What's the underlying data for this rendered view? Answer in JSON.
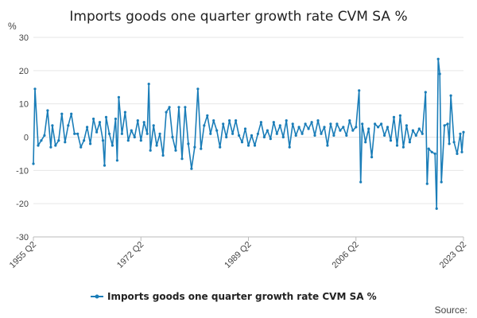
{
  "chart_data": {
    "type": "line",
    "title": "Imports goods one quarter growth rate CVM SA %",
    "ylabel": "%",
    "xlabel": "",
    "source_label": "Source:",
    "ylim": [
      -30,
      30
    ],
    "yticks": [
      -30,
      -20,
      -10,
      0,
      10,
      20,
      30
    ],
    "xlim": [
      "1955 Q2",
      "2023 Q2"
    ],
    "xticks": [
      "1955 Q2",
      "1972 Q2",
      "1989 Q2",
      "2006 Q2",
      "2023 Q2"
    ],
    "grid": true,
    "legend_position": "bottom-center",
    "color": "#1a7db8",
    "series": [
      {
        "name": "Imports goods one quarter growth rate CVM SA %",
        "points": [
          [
            "1955 Q2",
            -8.0
          ],
          [
            "1955 Q3",
            14.5
          ],
          [
            "1956 Q1",
            -2.5
          ],
          [
            "1956 Q3",
            -1.0
          ],
          [
            "1957 Q1",
            0.5
          ],
          [
            "1957 Q3",
            8.0
          ],
          [
            "1958 Q1",
            -3.0
          ],
          [
            "1958 Q2",
            3.5
          ],
          [
            "1958 Q4",
            -2.5
          ],
          [
            "1959 Q2",
            -1.0
          ],
          [
            "1959 Q4",
            7.0
          ],
          [
            "1960 Q2",
            -1.5
          ],
          [
            "1960 Q4",
            3.5
          ],
          [
            "1961 Q2",
            7.0
          ],
          [
            "1961 Q4",
            1.0
          ],
          [
            "1962 Q2",
            1.0
          ],
          [
            "1962 Q4",
            -3.0
          ],
          [
            "1963 Q2",
            -1.0
          ],
          [
            "1963 Q4",
            3.0
          ],
          [
            "1964 Q2",
            -2.0
          ],
          [
            "1964 Q4",
            5.5
          ],
          [
            "1965 Q2",
            1.5
          ],
          [
            "1965 Q4",
            4.5
          ],
          [
            "1966 Q2",
            -1.0
          ],
          [
            "1966 Q3",
            -8.5
          ],
          [
            "1966 Q4",
            6.0
          ],
          [
            "1967 Q2",
            1.0
          ],
          [
            "1967 Q4",
            -2.5
          ],
          [
            "1968 Q2",
            5.5
          ],
          [
            "1968 Q3",
            -7.0
          ],
          [
            "1968 Q4",
            12.0
          ],
          [
            "1969 Q2",
            1.0
          ],
          [
            "1969 Q4",
            7.5
          ],
          [
            "1970 Q2",
            -1.0
          ],
          [
            "1970 Q4",
            2.0
          ],
          [
            "1971 Q2",
            0.0
          ],
          [
            "1971 Q4",
            5.0
          ],
          [
            "1972 Q2",
            -1.0
          ],
          [
            "1972 Q4",
            4.5
          ],
          [
            "1973 Q2",
            1.0
          ],
          [
            "1973 Q3",
            16.0
          ],
          [
            "1973 Q4",
            -4.0
          ],
          [
            "1974 Q2",
            3.5
          ],
          [
            "1974 Q4",
            -2.5
          ],
          [
            "1975 Q2",
            1.0
          ],
          [
            "1975 Q4",
            -5.5
          ],
          [
            "1976 Q2",
            7.5
          ],
          [
            "1976 Q4",
            9.0
          ],
          [
            "1977 Q2",
            0.0
          ],
          [
            "1977 Q4",
            -4.0
          ],
          [
            "1978 Q2",
            9.0
          ],
          [
            "1978 Q4",
            -6.5
          ],
          [
            "1979 Q2",
            9.0
          ],
          [
            "1979 Q4",
            -2.0
          ],
          [
            "1980 Q2",
            -9.5
          ],
          [
            "1980 Q4",
            -3.0
          ],
          [
            "1981 Q2",
            14.5
          ],
          [
            "1981 Q4",
            -3.5
          ],
          [
            "1982 Q2",
            3.5
          ],
          [
            "1982 Q4",
            6.5
          ],
          [
            "1983 Q2",
            1.0
          ],
          [
            "1983 Q4",
            5.0
          ],
          [
            "1984 Q2",
            2.0
          ],
          [
            "1984 Q4",
            -3.0
          ],
          [
            "1985 Q2",
            4.0
          ],
          [
            "1985 Q4",
            0.0
          ],
          [
            "1986 Q2",
            5.0
          ],
          [
            "1986 Q4",
            1.0
          ],
          [
            "1987 Q2",
            5.0
          ],
          [
            "1987 Q4",
            0.5
          ],
          [
            "1988 Q2",
            -1.5
          ],
          [
            "1988 Q4",
            2.5
          ],
          [
            "1989 Q2",
            -2.5
          ],
          [
            "1989 Q4",
            0.5
          ],
          [
            "1990 Q2",
            -2.5
          ],
          [
            "1990 Q4",
            1.0
          ],
          [
            "1991 Q2",
            4.5
          ],
          [
            "1991 Q4",
            0.0
          ],
          [
            "1992 Q2",
            2.0
          ],
          [
            "1992 Q4",
            -0.5
          ],
          [
            "1993 Q2",
            4.5
          ],
          [
            "1993 Q4",
            1.0
          ],
          [
            "1994 Q2",
            3.5
          ],
          [
            "1994 Q4",
            0.0
          ],
          [
            "1995 Q2",
            5.0
          ],
          [
            "1995 Q4",
            -3.0
          ],
          [
            "1996 Q2",
            4.0
          ],
          [
            "1996 Q4",
            0.5
          ],
          [
            "1997 Q2",
            3.0
          ],
          [
            "1997 Q4",
            1.0
          ],
          [
            "1998 Q2",
            4.0
          ],
          [
            "1998 Q4",
            2.5
          ],
          [
            "1999 Q2",
            4.5
          ],
          [
            "1999 Q4",
            0.5
          ],
          [
            "2000 Q2",
            5.0
          ],
          [
            "2000 Q4",
            1.0
          ],
          [
            "2001 Q2",
            3.0
          ],
          [
            "2001 Q4",
            -2.5
          ],
          [
            "2002 Q2",
            4.0
          ],
          [
            "2002 Q4",
            0.5
          ],
          [
            "2003 Q2",
            4.0
          ],
          [
            "2003 Q4",
            2.0
          ],
          [
            "2004 Q2",
            3.0
          ],
          [
            "2004 Q4",
            0.5
          ],
          [
            "2005 Q2",
            5.0
          ],
          [
            "2005 Q4",
            2.0
          ],
          [
            "2006 Q2",
            3.0
          ],
          [
            "2006 Q4",
            14.0
          ],
          [
            "2007 Q1",
            -13.5
          ],
          [
            "2007 Q2",
            4.0
          ],
          [
            "2007 Q4",
            -1.5
          ],
          [
            "2008 Q2",
            2.5
          ],
          [
            "2008 Q4",
            -6.0
          ],
          [
            "2009 Q2",
            4.0
          ],
          [
            "2009 Q4",
            3.0
          ],
          [
            "2010 Q2",
            4.0
          ],
          [
            "2010 Q4",
            0.5
          ],
          [
            "2011 Q2",
            3.0
          ],
          [
            "2011 Q4",
            -1.0
          ],
          [
            "2012 Q2",
            6.0
          ],
          [
            "2012 Q4",
            -2.5
          ],
          [
            "2013 Q2",
            6.5
          ],
          [
            "2013 Q4",
            -3.0
          ],
          [
            "2014 Q2",
            3.5
          ],
          [
            "2014 Q4",
            -1.5
          ],
          [
            "2015 Q2",
            2.0
          ],
          [
            "2015 Q4",
            0.5
          ],
          [
            "2016 Q2",
            2.5
          ],
          [
            "2016 Q4",
            1.0
          ],
          [
            "2017 Q2",
            13.5
          ],
          [
            "2017 Q3",
            -14.0
          ],
          [
            "2017 Q4",
            -3.5
          ],
          [
            "2018 Q2",
            -4.5
          ],
          [
            "2018 Q4",
            -5.0
          ],
          [
            "2019 Q1",
            -21.5
          ],
          [
            "2019 Q2",
            23.5
          ],
          [
            "2019 Q3",
            19.0
          ],
          [
            "2019 Q4",
            -13.5
          ],
          [
            "2020 Q2",
            3.5
          ],
          [
            "2020 Q4",
            4.0
          ],
          [
            "2021 Q1",
            -2.0
          ],
          [
            "2021 Q2",
            12.5
          ],
          [
            "2021 Q4",
            -1.5
          ],
          [
            "2022 Q2",
            -5.0
          ],
          [
            "2022 Q4",
            1.0
          ],
          [
            "2023 Q1",
            -4.5
          ],
          [
            "2023 Q2",
            1.5
          ]
        ]
      }
    ]
  }
}
